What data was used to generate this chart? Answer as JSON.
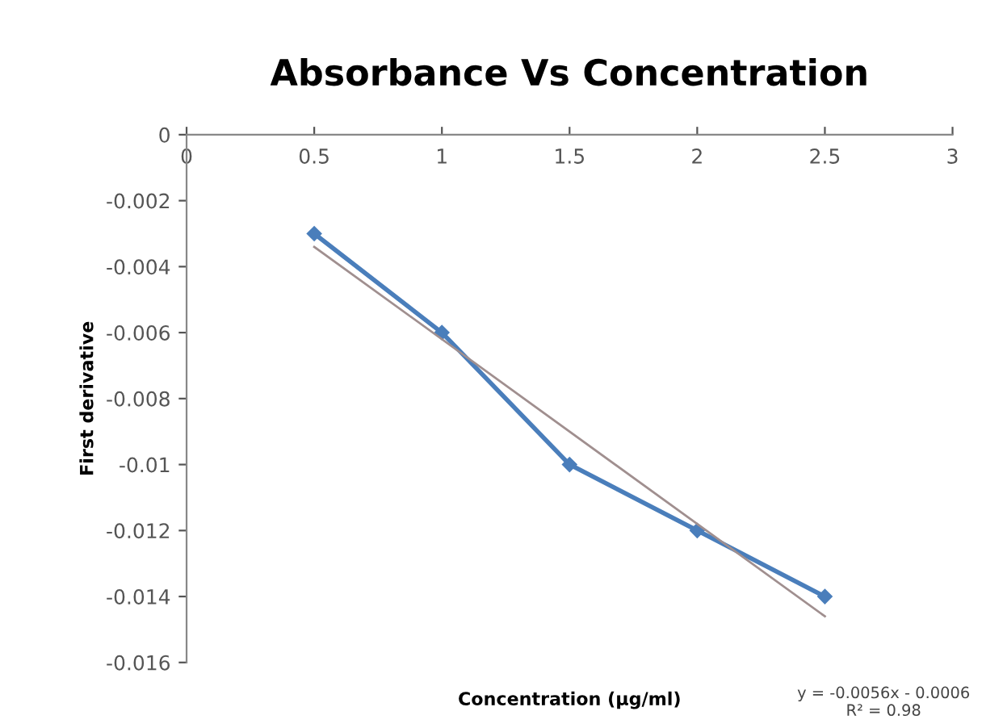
{
  "chart_data": {
    "type": "line",
    "title": "Absorbance Vs Concentration",
    "xlabel": "Concentration (µg/ml)",
    "ylabel": "First derivative",
    "xlim": [
      0,
      3
    ],
    "xticks": [
      0,
      0.5,
      1,
      1.5,
      2,
      2.5,
      3
    ],
    "ylim": [
      -0.016,
      0
    ],
    "yticks": [
      -0.016,
      -0.014,
      -0.012,
      -0.01,
      -0.008,
      -0.006,
      -0.004,
      -0.002,
      0
    ],
    "grid": false,
    "legend": false,
    "marker": "diamond",
    "line_style": "solid",
    "series": [
      {
        "x": [
          0.5,
          1,
          1.5,
          2,
          2.5
        ],
        "values": [
          -0.003,
          -0.006,
          -0.01,
          -0.012,
          -0.014
        ],
        "color": "#4a7ebb"
      },
      {
        "type": "line",
        "x": [
          0.5,
          2.5
        ],
        "values": [
          -0.0034,
          -0.0146
        ],
        "color": "#a08f8f",
        "marker": "none"
      }
    ],
    "annotations": [
      "y = -0.0056x - 0.0006\nR² = 0.98"
    ]
  }
}
